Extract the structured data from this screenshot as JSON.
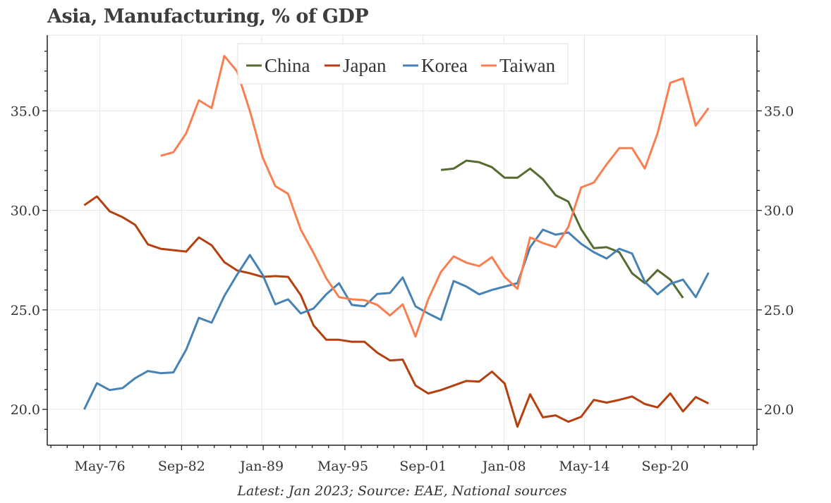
{
  "chart_data": {
    "type": "line",
    "title": "Asia, Manufacturing, % of GDP",
    "source_note": "Latest: Jan 2023; Source: EAE, National sources",
    "xlabel": "",
    "ylabel": "",
    "ylim": [
      18.2,
      38.8
    ],
    "xlim": [
      1972.1,
      2027.8
    ],
    "grid": true,
    "legend_position": "top-center",
    "y_ticks": [
      {
        "value": 20,
        "label": "20.0"
      },
      {
        "value": 25,
        "label": "25.0"
      },
      {
        "value": 30,
        "label": "30.0"
      },
      {
        "value": 35,
        "label": "35.0"
      }
    ],
    "x_ticks": [
      {
        "value": 1976.23,
        "label": "May-76"
      },
      {
        "value": 1982.64,
        "label": "Sep-82"
      },
      {
        "value": 1988.94,
        "label": "Jan-89"
      },
      {
        "value": 1995.3,
        "label": "May-95"
      },
      {
        "value": 2001.6,
        "label": "Sep-01"
      },
      {
        "value": 2007.96,
        "label": "Jan-08"
      },
      {
        "value": 2014.26,
        "label": "May-14"
      },
      {
        "value": 2020.6,
        "label": "Sep-20"
      }
    ],
    "series": [
      {
        "name": "China",
        "color": "#556b2f",
        "start": 2003,
        "values": [
          32.03,
          32.1,
          32.5,
          32.42,
          32.17,
          31.64,
          31.64,
          32.1,
          31.57,
          30.76,
          30.44,
          29.06,
          28.1,
          28.15,
          27.9,
          26.84,
          26.34,
          27.0,
          26.52,
          25.6
        ]
      },
      {
        "name": "Japan",
        "color": "#b5400f",
        "start": 1975,
        "values": [
          30.26,
          30.7,
          29.95,
          29.66,
          29.27,
          28.29,
          28.07,
          28.0,
          27.93,
          28.64,
          28.25,
          27.4,
          26.98,
          26.84,
          26.66,
          26.7,
          26.66,
          25.74,
          24.22,
          23.5,
          23.5,
          23.4,
          23.4,
          22.85,
          22.46,
          22.5,
          21.2,
          20.8,
          20.97,
          21.2,
          21.43,
          21.4,
          21.9,
          21.3,
          19.13,
          20.76,
          19.6,
          19.7,
          19.38,
          19.63,
          20.48,
          20.34,
          20.48,
          20.65,
          20.27,
          20.1,
          20.8,
          19.9,
          20.62,
          20.3
        ]
      },
      {
        "name": "Korea",
        "color": "#4682b4",
        "start": 1975,
        "values": [
          20.0,
          21.32,
          20.97,
          21.07,
          21.57,
          21.93,
          21.82,
          21.86,
          23.0,
          24.6,
          24.36,
          25.7,
          26.77,
          27.76,
          26.77,
          25.28,
          25.53,
          24.82,
          25.07,
          25.78,
          26.34,
          25.25,
          25.18,
          25.8,
          25.85,
          26.63,
          25.18,
          24.82,
          24.5,
          26.45,
          26.17,
          25.78,
          26.0,
          26.17,
          26.34,
          28.15,
          29.03,
          28.78,
          28.89,
          28.32,
          27.9,
          27.58,
          28.07,
          27.83,
          26.41,
          25.78,
          26.31,
          26.52,
          25.64,
          26.87
        ]
      },
      {
        "name": "Taiwan",
        "color": "#fa7f50",
        "start": 1981,
        "values": [
          32.74,
          32.92,
          33.87,
          35.53,
          35.14,
          37.76,
          36.98,
          35.0,
          32.67,
          31.22,
          30.83,
          29.03,
          27.86,
          26.59,
          25.64,
          25.53,
          25.49,
          25.25,
          24.72,
          25.28,
          23.66,
          25.53,
          26.91,
          27.69,
          27.37,
          27.2,
          27.65,
          26.66,
          26.06,
          28.64,
          28.36,
          28.15,
          29.17,
          31.15,
          31.4,
          32.31,
          33.13,
          33.13,
          32.1,
          33.87,
          36.41,
          36.63,
          34.26,
          35.14
        ]
      }
    ]
  }
}
